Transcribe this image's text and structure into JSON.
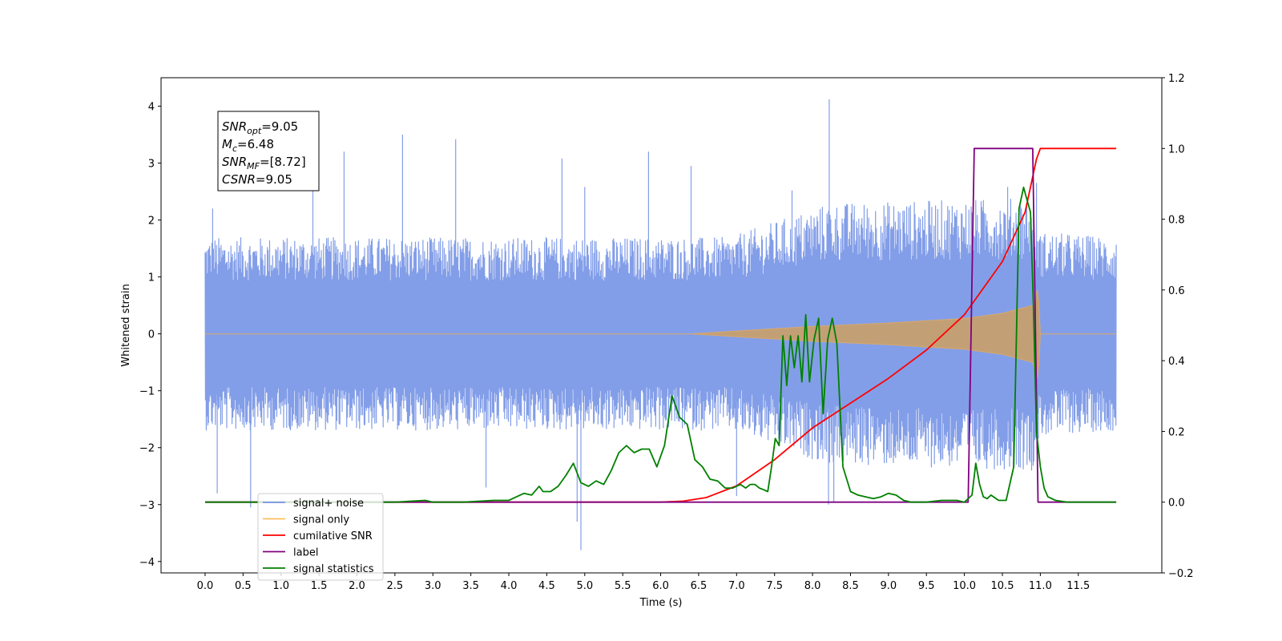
{
  "chart_data": {
    "type": "line",
    "xlabel": "Time (s)",
    "ylabel": "Whitened strain",
    "ylim": [
      -4.2,
      4.5
    ],
    "y2lim": [
      -0.2,
      1.2
    ],
    "xlim": [
      -0.58,
      12.6
    ],
    "x_ticks": [
      0.0,
      0.5,
      1.0,
      1.5,
      2.0,
      2.5,
      3.0,
      3.5,
      4.0,
      4.5,
      5.0,
      5.5,
      6.0,
      6.5,
      7.0,
      7.5,
      8.0,
      8.5,
      9.0,
      9.5,
      10.0,
      10.5,
      11.0,
      11.5
    ],
    "x_tick_labels": [
      "0.0",
      "0.5",
      "1.0",
      "1.5",
      "2.0",
      "2.5",
      "3.0",
      "3.5",
      "4.0",
      "4.5",
      "5.0",
      "5.5",
      "6.0",
      "6.5",
      "7.0",
      "7.5",
      "8.0",
      "8.5",
      "9.0",
      "9.5",
      "10.0",
      "10.5",
      "11.0",
      "11.5"
    ],
    "y_ticks": [
      -4,
      -3,
      -2,
      -1,
      0,
      1,
      2,
      3,
      4
    ],
    "y_tick_labels": [
      "−4",
      "−3",
      "−2",
      "−1",
      "0",
      "1",
      "2",
      "3",
      "4"
    ],
    "y2_ticks": [
      -0.2,
      0.0,
      0.2,
      0.4,
      0.6,
      0.8,
      1.0,
      1.2
    ],
    "y2_tick_labels": [
      "−0.2",
      "0.0",
      "0.2",
      "0.4",
      "0.6",
      "0.8",
      "1.0",
      "1.2"
    ],
    "grid": false,
    "legend_placement": "lower-left",
    "annotation": {
      "lines": [
        {
          "sym": "SNR",
          "sub": "opt",
          "text": "=9.05"
        },
        {
          "sym": "M",
          "sub": "c",
          "text": "=6.48"
        },
        {
          "sym": "SNR",
          "sub": "MF",
          "text": "=[8.72]"
        },
        {
          "sym": "CSNR",
          "sub": "",
          "text": "=9.05"
        }
      ]
    },
    "series": [
      {
        "name": "signal+ noise",
        "axis": "left",
        "color": "#7593e6",
        "envelope": [
          [
            0.0,
            1.7
          ],
          [
            6.9,
            1.7
          ],
          [
            8.2,
            2.3
          ],
          [
            10.9,
            2.4
          ],
          [
            11.0,
            1.8
          ],
          [
            12.0,
            1.7
          ]
        ],
        "spikes": [
          [
            0.1,
            2.2
          ],
          [
            0.16,
            -2.8
          ],
          [
            0.6,
            -3.05
          ],
          [
            1.42,
            2.8
          ],
          [
            1.83,
            3.2
          ],
          [
            2.6,
            3.5
          ],
          [
            3.3,
            3.42
          ],
          [
            3.7,
            -2.7
          ],
          [
            4.7,
            3.08
          ],
          [
            4.9,
            -3.3
          ],
          [
            4.95,
            -3.8
          ],
          [
            5.0,
            2.58
          ],
          [
            5.84,
            3.2
          ],
          [
            6.4,
            2.95
          ],
          [
            7.0,
            -2.85
          ],
          [
            7.73,
            2.52
          ],
          [
            8.22,
            4.12
          ],
          [
            8.21,
            -3.0
          ],
          [
            8.28,
            -2.95
          ],
          [
            10.57,
            2.58
          ],
          [
            10.95,
            2.65
          ]
        ]
      },
      {
        "name": "signal only",
        "axis": "left",
        "color": "#ffbe5f",
        "envelope": [
          [
            0.0,
            0.0
          ],
          [
            6.4,
            0.0
          ],
          [
            7.0,
            0.05
          ],
          [
            8.0,
            0.13
          ],
          [
            9.0,
            0.19
          ],
          [
            10.0,
            0.27
          ],
          [
            10.5,
            0.36
          ],
          [
            10.9,
            0.5
          ],
          [
            10.97,
            0.82
          ],
          [
            11.0,
            0.0
          ],
          [
            12.0,
            0.0
          ]
        ]
      },
      {
        "name": "cumilative SNR",
        "axis": "right",
        "color": "#ff0000",
        "x": [
          0.0,
          6.0,
          6.3,
          6.6,
          7.0,
          7.5,
          8.0,
          8.5,
          9.0,
          9.5,
          10.0,
          10.5,
          10.8,
          10.95,
          11.0,
          11.5,
          12.0
        ],
        "y": [
          0.0,
          0.0,
          0.003,
          0.013,
          0.046,
          0.12,
          0.21,
          0.28,
          0.35,
          0.43,
          0.53,
          0.68,
          0.82,
          0.97,
          1.0,
          1.0,
          1.0
        ]
      },
      {
        "name": "label",
        "axis": "right",
        "color": "#800080",
        "x": [
          0.0,
          10.05,
          10.13,
          10.9,
          10.97,
          12.0
        ],
        "y": [
          0.0,
          0.0,
          1.0,
          1.0,
          0.0,
          0.0
        ]
      },
      {
        "name": "signal statistics",
        "axis": "right",
        "color": "#008000",
        "x": [
          0.0,
          2.5,
          2.9,
          3.0,
          3.4,
          3.8,
          4.0,
          4.1,
          4.2,
          4.3,
          4.4,
          4.45,
          4.55,
          4.65,
          4.75,
          4.85,
          4.95,
          5.05,
          5.15,
          5.25,
          5.35,
          5.45,
          5.55,
          5.65,
          5.75,
          5.85,
          5.95,
          6.05,
          6.15,
          6.25,
          6.35,
          6.45,
          6.55,
          6.65,
          6.75,
          6.85,
          6.95,
          7.05,
          7.12,
          7.18,
          7.24,
          7.3,
          7.36,
          7.41,
          7.46,
          7.51,
          7.56,
          7.61,
          7.66,
          7.71,
          7.76,
          7.81,
          7.86,
          7.91,
          7.96,
          8.02,
          8.08,
          8.14,
          8.2,
          8.26,
          8.32,
          8.4,
          8.5,
          8.6,
          8.7,
          8.8,
          8.9,
          9.0,
          9.1,
          9.2,
          9.3,
          9.4,
          9.5,
          9.7,
          9.9,
          10.0,
          10.1,
          10.15,
          10.2,
          10.25,
          10.3,
          10.35,
          10.45,
          10.55,
          10.65,
          10.72,
          10.78,
          10.83,
          10.87,
          10.91,
          10.95,
          11.0,
          11.05,
          11.1,
          11.2,
          11.35,
          11.6,
          12.0
        ],
        "y": [
          0.0,
          0.0,
          0.005,
          0.0,
          0.0,
          0.005,
          0.005,
          0.015,
          0.025,
          0.02,
          0.045,
          0.03,
          0.03,
          0.045,
          0.075,
          0.11,
          0.055,
          0.045,
          0.06,
          0.05,
          0.09,
          0.14,
          0.16,
          0.14,
          0.15,
          0.15,
          0.1,
          0.16,
          0.3,
          0.24,
          0.22,
          0.12,
          0.1,
          0.065,
          0.06,
          0.04,
          0.04,
          0.05,
          0.04,
          0.05,
          0.05,
          0.04,
          0.035,
          0.03,
          0.1,
          0.18,
          0.16,
          0.47,
          0.33,
          0.47,
          0.38,
          0.47,
          0.34,
          0.53,
          0.34,
          0.46,
          0.52,
          0.25,
          0.46,
          0.52,
          0.45,
          0.1,
          0.03,
          0.02,
          0.015,
          0.01,
          0.015,
          0.025,
          0.02,
          0.005,
          0.0,
          0.0,
          0.0,
          0.005,
          0.005,
          0.0,
          0.02,
          0.11,
          0.05,
          0.015,
          0.01,
          0.02,
          0.005,
          0.005,
          0.1,
          0.83,
          0.89,
          0.85,
          0.82,
          0.55,
          0.2,
          0.1,
          0.04,
          0.015,
          0.005,
          0.0,
          0.0,
          0.0
        ]
      }
    ],
    "legend": [
      {
        "label": "signal+ noise",
        "color": "#7593e6"
      },
      {
        "label": "signal only",
        "color": "#ffbe5f"
      },
      {
        "label": "cumilative SNR",
        "color": "#ff0000"
      },
      {
        "label": "label",
        "color": "#800080"
      },
      {
        "label": "signal statistics",
        "color": "#008000"
      }
    ]
  }
}
